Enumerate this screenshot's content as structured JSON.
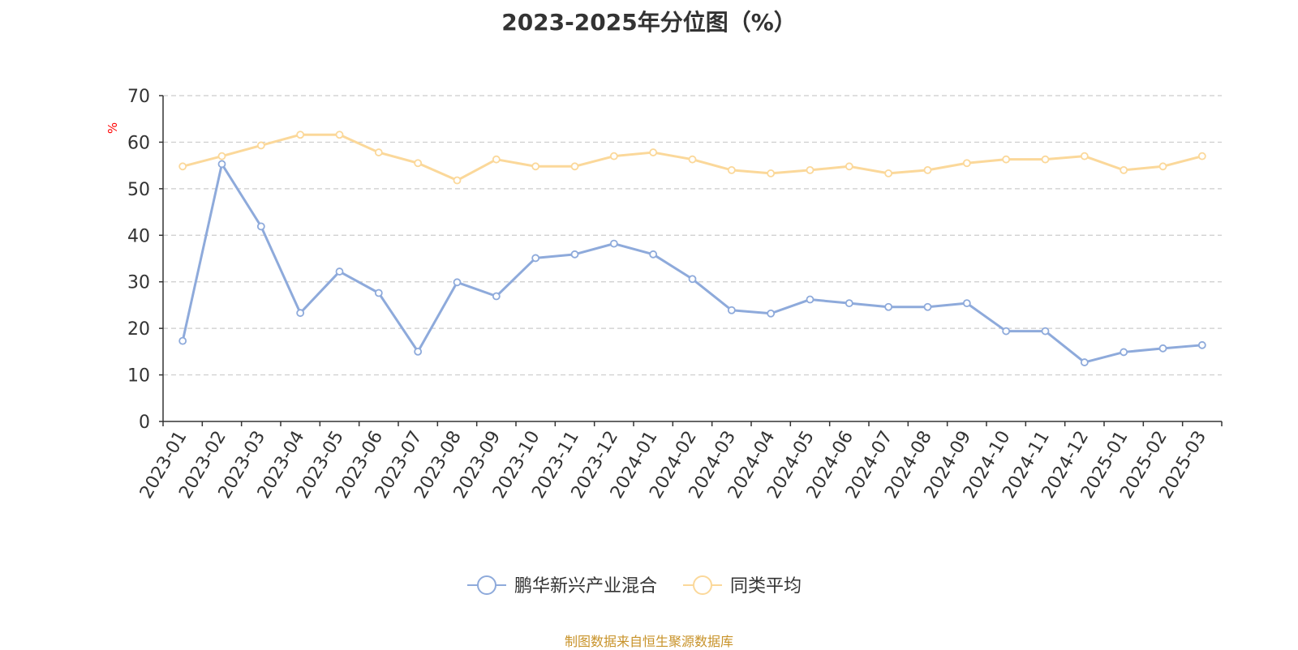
{
  "chart_data": {
    "type": "line",
    "title": "2023-2025年分位图（%）",
    "ylabel": "%",
    "xlabel": "",
    "ylim": [
      0,
      70
    ],
    "yticks": [
      0,
      10,
      20,
      30,
      40,
      50,
      60,
      70
    ],
    "grid": true,
    "legend_position": "bottom",
    "categories": [
      "2023-01",
      "2023-02",
      "2023-03",
      "2023-04",
      "2023-05",
      "2023-06",
      "2023-07",
      "2023-08",
      "2023-09",
      "2023-10",
      "2023-11",
      "2023-12",
      "2024-01",
      "2024-02",
      "2024-03",
      "2024-04",
      "2024-05",
      "2024-06",
      "2024-07",
      "2024-08",
      "2024-09",
      "2024-10",
      "2024-11",
      "2024-12",
      "2025-01",
      "2025-02",
      "2025-03"
    ],
    "series": [
      {
        "name": "鹏华新兴产业混合",
        "color": "#8eaadb",
        "values": [
          17.3,
          55.3,
          41.9,
          23.3,
          32.2,
          27.6,
          15.0,
          29.9,
          26.9,
          35.1,
          35.9,
          38.2,
          35.9,
          30.6,
          23.9,
          23.2,
          26.2,
          25.4,
          24.6,
          24.6,
          25.4,
          19.4,
          19.4,
          12.7,
          14.9,
          15.7,
          16.4
        ]
      },
      {
        "name": "同类平均",
        "color": "#fbd89a",
        "values": [
          54.8,
          57.0,
          59.3,
          61.6,
          61.6,
          57.8,
          55.5,
          51.8,
          56.3,
          54.8,
          54.8,
          57.0,
          57.8,
          56.3,
          54.0,
          53.3,
          54.0,
          54.8,
          53.3,
          54.0,
          55.5,
          56.3,
          56.3,
          57.0,
          54.0,
          54.8,
          57.0
        ]
      }
    ]
  },
  "source_note": "制图数据来自恒生聚源数据库",
  "colors": {
    "axis": "#333333",
    "grid": "#cccccc",
    "ylabel": "#ff0000",
    "source": "#c8932a"
  }
}
